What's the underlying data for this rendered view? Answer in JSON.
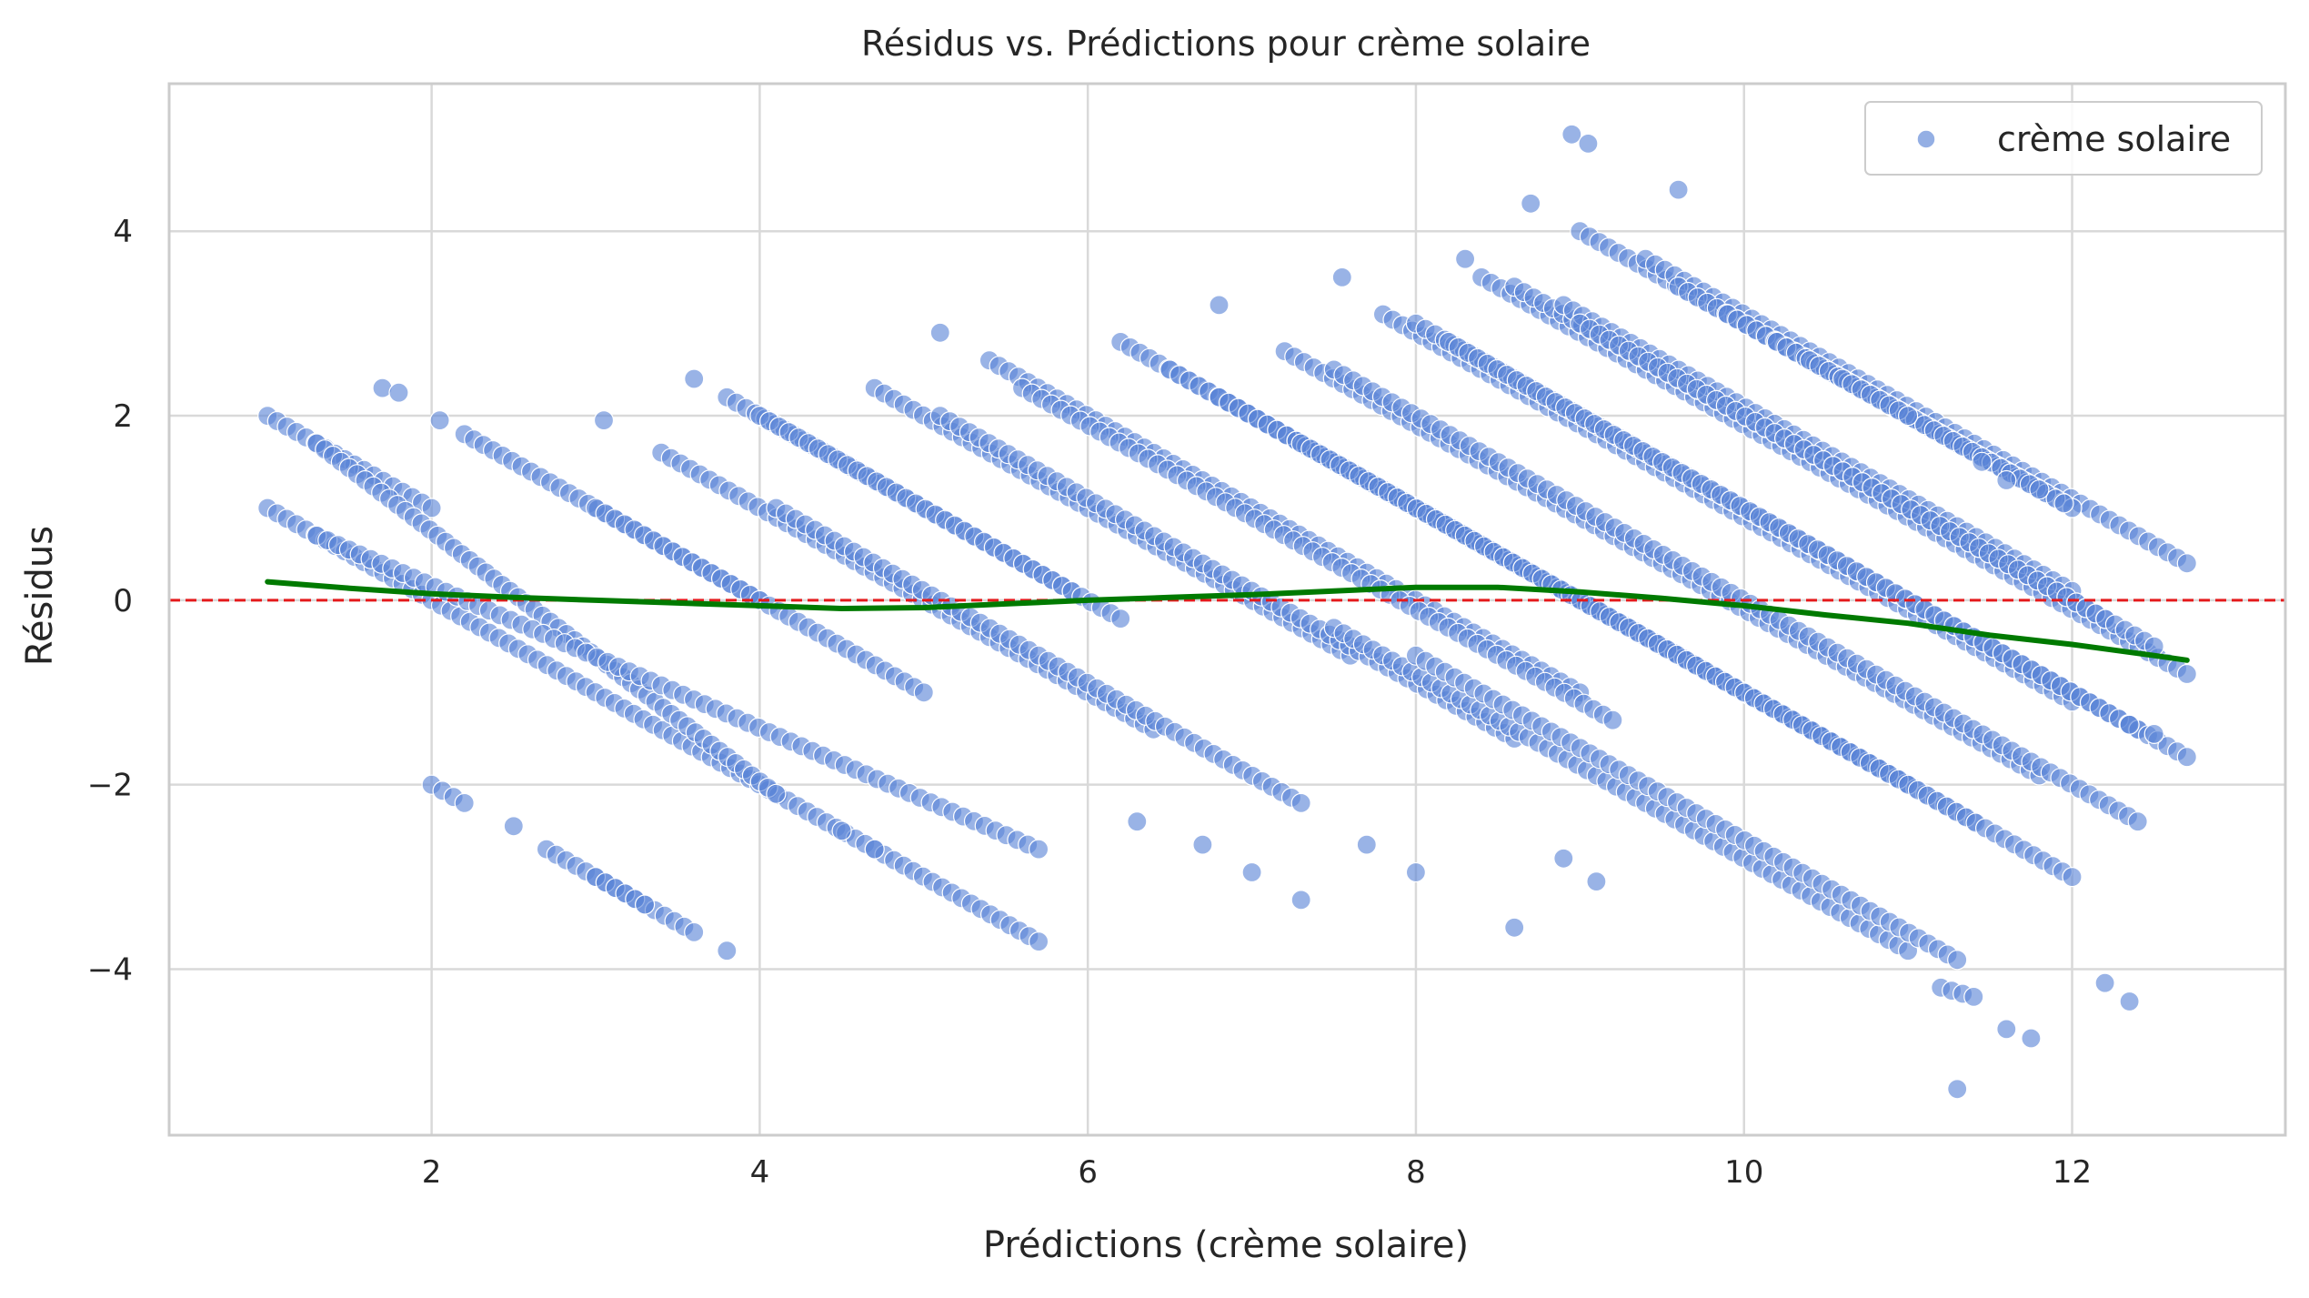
{
  "chart_data": {
    "type": "scatter",
    "title": "Résidus vs. Prédictions pour crème solaire",
    "xlabel": "Prédictions (crème solaire)",
    "ylabel": "Résidus",
    "xlim": [
      0.4,
      13.3
    ],
    "ylim": [
      -5.8,
      5.6
    ],
    "xticks": [
      2,
      4,
      6,
      8,
      10,
      12
    ],
    "yticks": [
      -4,
      -2,
      0,
      2,
      4
    ],
    "ytick_labels": [
      "−4",
      "−2",
      "0",
      "2",
      "4"
    ],
    "grid": true,
    "legend": {
      "position": "top-right",
      "entries": [
        "crème solaire"
      ]
    },
    "colors": {
      "points": "#5b84d6",
      "trend": "#007a00",
      "zero_line": "#e41a1c"
    },
    "series": [
      {
        "name": "crème solaire",
        "kind": "scatter",
        "bands": [
          {
            "x": [
              1.0,
              2.0
            ],
            "y": [
              2.0,
              1.0
            ]
          },
          {
            "x": [
              1.0,
              5.7
            ],
            "y": [
              1.0,
              -3.7
            ]
          },
          {
            "x": [
              1.3,
              4.1
            ],
            "y": [
              1.7,
              -2.1
            ]
          },
          {
            "x": [
              1.3,
              5.7
            ],
            "y": [
              0.7,
              -2.7
            ]
          },
          {
            "x": [
              2.2,
              4.0
            ],
            "y": [
              1.8,
              0.0
            ]
          },
          {
            "x": [
              3.0,
              5.0
            ],
            "y": [
              1.0,
              -1.0
            ]
          },
          {
            "x": [
              3.4,
              6.4
            ],
            "y": [
              1.6,
              -1.4
            ]
          },
          {
            "x": [
              3.8,
              5.9
            ],
            "y": [
              2.2,
              0.1
            ]
          },
          {
            "x": [
              4.0,
              6.2
            ],
            "y": [
              2.0,
              -0.2
            ]
          },
          {
            "x": [
              4.1,
              7.3
            ],
            "y": [
              1.0,
              -2.2
            ]
          },
          {
            "x": [
              4.7,
              7.6
            ],
            "y": [
              2.3,
              -0.6
            ]
          },
          {
            "x": [
              5.1,
              8.6
            ],
            "y": [
              2.0,
              -1.5
            ]
          },
          {
            "x": [
              5.4,
              9.0
            ],
            "y": [
              2.6,
              -1.0
            ]
          },
          {
            "x": [
              5.6,
              9.2
            ],
            "y": [
              2.3,
              -1.3
            ]
          },
          {
            "x": [
              6.2,
              10.6
            ],
            "y": [
              2.8,
              -1.6
            ]
          },
          {
            "x": [
              6.5,
              11.0
            ],
            "y": [
              2.5,
              -2.0
            ]
          },
          {
            "x": [
              6.8,
              11.4
            ],
            "y": [
              2.2,
              -2.4
            ]
          },
          {
            "x": [
              7.2,
              11.8
            ],
            "y": [
              2.7,
              -1.9
            ]
          },
          {
            "x": [
              7.3,
              12.0
            ],
            "y": [
              1.7,
              -3.0
            ]
          },
          {
            "x": [
              7.5,
              12.4
            ],
            "y": [
              2.5,
              -2.4
            ]
          },
          {
            "x": [
              7.8,
              12.0
            ],
            "y": [
              3.1,
              -1.1
            ]
          },
          {
            "x": [
              8.0,
              12.4
            ],
            "y": [
              3.0,
              -1.4
            ]
          },
          {
            "x": [
              8.2,
              12.7
            ],
            "y": [
              2.8,
              -1.7
            ]
          },
          {
            "x": [
              8.4,
              12.7
            ],
            "y": [
              3.5,
              -0.8
            ]
          },
          {
            "x": [
              8.6,
              12.2
            ],
            "y": [
              3.4,
              -0.2
            ]
          },
          {
            "x": [
              8.9,
              12.0
            ],
            "y": [
              3.2,
              0.1
            ]
          },
          {
            "x": [
              9.0,
              11.4
            ],
            "y": [
              4.0,
              1.6
            ]
          },
          {
            "x": [
              9.0,
              12.5
            ],
            "y": [
              3.0,
              -0.5
            ]
          },
          {
            "x": [
              9.4,
              12.7
            ],
            "y": [
              3.7,
              0.4
            ]
          },
          {
            "x": [
              9.6,
              12.0
            ],
            "y": [
              3.4,
              1.0
            ]
          },
          {
            "x": [
              9.9,
              11.3
            ],
            "y": [
              3.1,
              1.7
            ]
          },
          {
            "x": [
              10.2,
              11.9
            ],
            "y": [
              2.8,
              1.1
            ]
          },
          {
            "x": [
              10.4,
              11.8
            ],
            "y": [
              2.6,
              1.2
            ]
          },
          {
            "x": [
              10.6,
              11.0
            ],
            "y": [
              2.4,
              2.0
            ]
          },
          {
            "x": [
              2.0,
              2.2
            ],
            "y": [
              -2.0,
              -2.2
            ]
          },
          {
            "x": [
              2.7,
              3.6
            ],
            "y": [
              -2.7,
              -3.6
            ]
          },
          {
            "x": [
              3.0,
              3.3
            ],
            "y": [
              -3.0,
              -3.3
            ]
          },
          {
            "x": [
              7.5,
              11.0
            ],
            "y": [
              -0.3,
              -3.8
            ]
          },
          {
            "x": [
              8.0,
              11.3
            ],
            "y": [
              -0.6,
              -3.9
            ]
          },
          {
            "x": [
              11.2,
              11.4
            ],
            "y": [
              -4.2,
              -4.3
            ]
          }
        ],
        "outliers": [
          {
            "x": 1.7,
            "y": 2.3
          },
          {
            "x": 1.8,
            "y": 2.25
          },
          {
            "x": 2.05,
            "y": 1.95
          },
          {
            "x": 2.5,
            "y": -2.45
          },
          {
            "x": 3.05,
            "y": 1.95
          },
          {
            "x": 3.6,
            "y": 2.4
          },
          {
            "x": 3.8,
            "y": -3.8
          },
          {
            "x": 4.5,
            "y": -2.5
          },
          {
            "x": 4.7,
            "y": -2.7
          },
          {
            "x": 5.1,
            "y": 2.9
          },
          {
            "x": 6.3,
            "y": -2.4
          },
          {
            "x": 6.7,
            "y": -2.65
          },
          {
            "x": 6.8,
            "y": 3.2
          },
          {
            "x": 7.0,
            "y": -2.95
          },
          {
            "x": 7.3,
            "y": -3.25
          },
          {
            "x": 7.55,
            "y": 3.5
          },
          {
            "x": 7.7,
            "y": -2.65
          },
          {
            "x": 8.0,
            "y": -2.95
          },
          {
            "x": 8.3,
            "y": 3.7
          },
          {
            "x": 8.6,
            "y": -3.55
          },
          {
            "x": 8.7,
            "y": 4.3
          },
          {
            "x": 8.9,
            "y": -2.8
          },
          {
            "x": 8.95,
            "y": 5.05
          },
          {
            "x": 9.05,
            "y": 4.95
          },
          {
            "x": 9.1,
            "y": -3.05
          },
          {
            "x": 9.6,
            "y": 4.45
          },
          {
            "x": 11.3,
            "y": -5.3
          },
          {
            "x": 11.6,
            "y": -4.65
          },
          {
            "x": 11.75,
            "y": -4.75
          },
          {
            "x": 11.6,
            "y": 1.3
          },
          {
            "x": 11.45,
            "y": 1.5
          },
          {
            "x": 11.95,
            "y": 1.05
          },
          {
            "x": 12.2,
            "y": -4.15
          },
          {
            "x": 12.35,
            "y": -4.35
          },
          {
            "x": 12.35,
            "y": -1.35
          },
          {
            "x": 12.5,
            "y": -1.45
          }
        ]
      },
      {
        "name": "",
        "kind": "trend",
        "x": [
          1.0,
          1.5,
          2.0,
          2.5,
          3.0,
          3.5,
          4.0,
          4.5,
          5.0,
          5.5,
          6.0,
          6.5,
          7.0,
          7.5,
          8.0,
          8.5,
          9.0,
          9.5,
          10.0,
          10.5,
          11.0,
          11.5,
          12.0,
          12.5,
          12.7
        ],
        "y": [
          0.2,
          0.13,
          0.07,
          0.03,
          0.0,
          -0.03,
          -0.06,
          -0.09,
          -0.08,
          -0.04,
          0.0,
          0.03,
          0.06,
          0.1,
          0.14,
          0.14,
          0.09,
          0.02,
          -0.06,
          -0.16,
          -0.25,
          -0.38,
          -0.48,
          -0.6,
          -0.65
        ]
      }
    ],
    "reference_line": {
      "y": 0,
      "style": "dashed"
    }
  }
}
